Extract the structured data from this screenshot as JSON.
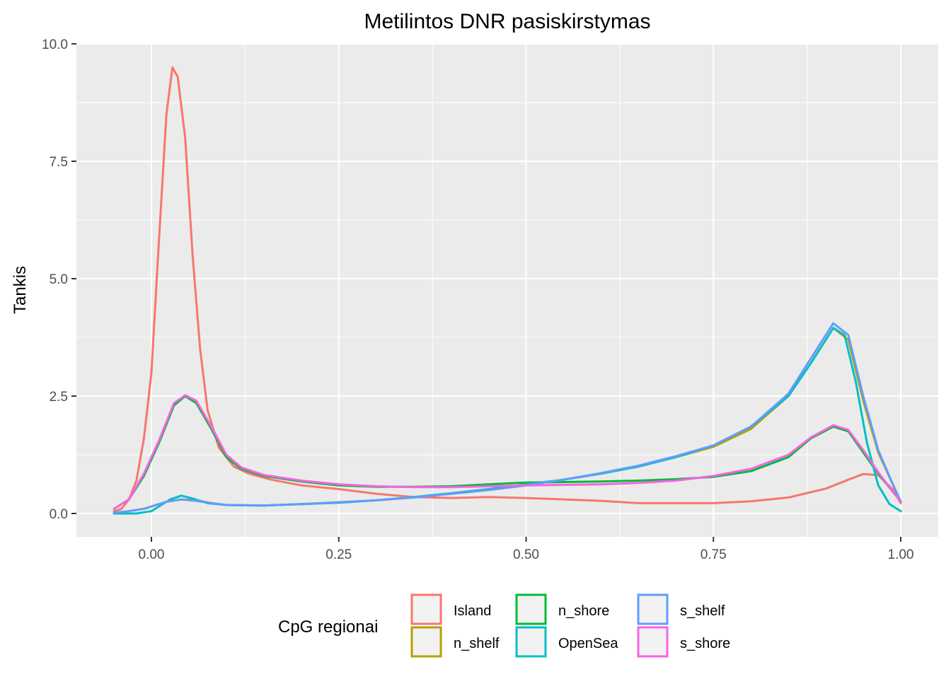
{
  "chart_data": {
    "type": "line",
    "title": "Metilintos DNR pasiskirstymas",
    "xlabel": "",
    "ylabel": "Tankis",
    "xlim": [
      -0.05,
      1.0
    ],
    "ylim": [
      0,
      10
    ],
    "x_ticks": [
      0.0,
      0.25,
      0.5,
      0.75,
      1.0
    ],
    "x_tick_labels": [
      "0.00",
      "0.25",
      "0.50",
      "0.75",
      "1.00"
    ],
    "y_ticks": [
      0.0,
      2.5,
      5.0,
      7.5,
      10.0
    ],
    "y_tick_labels": [
      "0.0",
      "2.5",
      "5.0",
      "7.5",
      "10.0"
    ],
    "grid": true,
    "legend": {
      "title": "CpG regionai",
      "position": "bottom"
    },
    "series": [
      {
        "name": "Island",
        "color": "#F8766D",
        "points": [
          [
            -0.05,
            0.05
          ],
          [
            -0.04,
            0.1
          ],
          [
            -0.03,
            0.3
          ],
          [
            -0.02,
            0.7
          ],
          [
            -0.01,
            1.6
          ],
          [
            0.0,
            3.0
          ],
          [
            0.01,
            5.8
          ],
          [
            0.02,
            8.5
          ],
          [
            0.028,
            9.5
          ],
          [
            0.035,
            9.3
          ],
          [
            0.045,
            8.0
          ],
          [
            0.055,
            5.5
          ],
          [
            0.065,
            3.5
          ],
          [
            0.075,
            2.2
          ],
          [
            0.09,
            1.4
          ],
          [
            0.11,
            1.0
          ],
          [
            0.13,
            0.85
          ],
          [
            0.16,
            0.72
          ],
          [
            0.2,
            0.6
          ],
          [
            0.25,
            0.52
          ],
          [
            0.3,
            0.42
          ],
          [
            0.35,
            0.35
          ],
          [
            0.4,
            0.33
          ],
          [
            0.45,
            0.35
          ],
          [
            0.5,
            0.33
          ],
          [
            0.55,
            0.3
          ],
          [
            0.6,
            0.27
          ],
          [
            0.65,
            0.22
          ],
          [
            0.7,
            0.22
          ],
          [
            0.75,
            0.22
          ],
          [
            0.8,
            0.26
          ],
          [
            0.85,
            0.34
          ],
          [
            0.9,
            0.53
          ],
          [
            0.93,
            0.72
          ],
          [
            0.95,
            0.84
          ],
          [
            0.97,
            0.82
          ],
          [
            0.99,
            0.5
          ],
          [
            1.0,
            0.22
          ]
        ]
      },
      {
        "name": "n_shelf",
        "color": "#B79F00",
        "points": [
          [
            -0.05,
            0.02
          ],
          [
            -0.03,
            0.05
          ],
          [
            -0.01,
            0.1
          ],
          [
            0.0,
            0.15
          ],
          [
            0.02,
            0.25
          ],
          [
            0.04,
            0.3
          ],
          [
            0.06,
            0.28
          ],
          [
            0.08,
            0.22
          ],
          [
            0.1,
            0.18
          ],
          [
            0.15,
            0.17
          ],
          [
            0.2,
            0.2
          ],
          [
            0.25,
            0.24
          ],
          [
            0.3,
            0.28
          ],
          [
            0.35,
            0.34
          ],
          [
            0.4,
            0.42
          ],
          [
            0.45,
            0.5
          ],
          [
            0.5,
            0.6
          ],
          [
            0.55,
            0.72
          ],
          [
            0.6,
            0.85
          ],
          [
            0.65,
            1.0
          ],
          [
            0.7,
            1.2
          ],
          [
            0.75,
            1.42
          ],
          [
            0.8,
            1.8
          ],
          [
            0.85,
            2.5
          ],
          [
            0.88,
            3.2
          ],
          [
            0.91,
            3.95
          ],
          [
            0.93,
            3.7
          ],
          [
            0.95,
            2.4
          ],
          [
            0.97,
            1.3
          ],
          [
            0.99,
            0.6
          ],
          [
            1.0,
            0.25
          ]
        ]
      },
      {
        "name": "n_shore",
        "color": "#00BA38",
        "points": [
          [
            -0.05,
            0.1
          ],
          [
            -0.03,
            0.3
          ],
          [
            -0.01,
            0.8
          ],
          [
            0.01,
            1.5
          ],
          [
            0.03,
            2.3
          ],
          [
            0.045,
            2.5
          ],
          [
            0.06,
            2.35
          ],
          [
            0.08,
            1.8
          ],
          [
            0.1,
            1.2
          ],
          [
            0.12,
            0.95
          ],
          [
            0.15,
            0.8
          ],
          [
            0.2,
            0.68
          ],
          [
            0.25,
            0.6
          ],
          [
            0.3,
            0.57
          ],
          [
            0.35,
            0.57
          ],
          [
            0.4,
            0.58
          ],
          [
            0.45,
            0.62
          ],
          [
            0.5,
            0.66
          ],
          [
            0.55,
            0.67
          ],
          [
            0.6,
            0.68
          ],
          [
            0.65,
            0.7
          ],
          [
            0.7,
            0.73
          ],
          [
            0.75,
            0.78
          ],
          [
            0.8,
            0.9
          ],
          [
            0.85,
            1.2
          ],
          [
            0.88,
            1.6
          ],
          [
            0.91,
            1.85
          ],
          [
            0.93,
            1.75
          ],
          [
            0.95,
            1.3
          ],
          [
            0.97,
            0.85
          ],
          [
            0.99,
            0.45
          ],
          [
            1.0,
            0.25
          ]
        ]
      },
      {
        "name": "OpenSea",
        "color": "#00BFC4",
        "points": [
          [
            -0.05,
            0.0
          ],
          [
            -0.02,
            0.0
          ],
          [
            0.0,
            0.05
          ],
          [
            0.01,
            0.15
          ],
          [
            0.025,
            0.3
          ],
          [
            0.04,
            0.38
          ],
          [
            0.055,
            0.32
          ],
          [
            0.075,
            0.22
          ],
          [
            0.1,
            0.18
          ],
          [
            0.15,
            0.17
          ],
          [
            0.2,
            0.2
          ],
          [
            0.25,
            0.23
          ],
          [
            0.3,
            0.28
          ],
          [
            0.35,
            0.35
          ],
          [
            0.4,
            0.43
          ],
          [
            0.45,
            0.52
          ],
          [
            0.5,
            0.62
          ],
          [
            0.55,
            0.72
          ],
          [
            0.6,
            0.85
          ],
          [
            0.65,
            1.0
          ],
          [
            0.7,
            1.2
          ],
          [
            0.75,
            1.45
          ],
          [
            0.8,
            1.85
          ],
          [
            0.85,
            2.5
          ],
          [
            0.88,
            3.2
          ],
          [
            0.91,
            3.95
          ],
          [
            0.925,
            3.8
          ],
          [
            0.94,
            2.8
          ],
          [
            0.955,
            1.5
          ],
          [
            0.97,
            0.6
          ],
          [
            0.985,
            0.2
          ],
          [
            1.0,
            0.05
          ]
        ]
      },
      {
        "name": "s_shelf",
        "color": "#619CFF",
        "points": [
          [
            -0.05,
            0.02
          ],
          [
            -0.03,
            0.05
          ],
          [
            -0.01,
            0.1
          ],
          [
            0.0,
            0.15
          ],
          [
            0.02,
            0.25
          ],
          [
            0.04,
            0.3
          ],
          [
            0.06,
            0.27
          ],
          [
            0.08,
            0.22
          ],
          [
            0.1,
            0.18
          ],
          [
            0.15,
            0.17
          ],
          [
            0.2,
            0.2
          ],
          [
            0.25,
            0.24
          ],
          [
            0.3,
            0.28
          ],
          [
            0.35,
            0.34
          ],
          [
            0.4,
            0.42
          ],
          [
            0.45,
            0.5
          ],
          [
            0.5,
            0.6
          ],
          [
            0.55,
            0.72
          ],
          [
            0.6,
            0.86
          ],
          [
            0.65,
            1.02
          ],
          [
            0.7,
            1.22
          ],
          [
            0.75,
            1.45
          ],
          [
            0.8,
            1.85
          ],
          [
            0.85,
            2.55
          ],
          [
            0.88,
            3.3
          ],
          [
            0.91,
            4.05
          ],
          [
            0.93,
            3.8
          ],
          [
            0.95,
            2.5
          ],
          [
            0.97,
            1.35
          ],
          [
            0.99,
            0.6
          ],
          [
            1.0,
            0.25
          ]
        ]
      },
      {
        "name": "s_shore",
        "color": "#F564E3",
        "points": [
          [
            -0.05,
            0.1
          ],
          [
            -0.03,
            0.3
          ],
          [
            -0.01,
            0.85
          ],
          [
            0.01,
            1.55
          ],
          [
            0.03,
            2.35
          ],
          [
            0.045,
            2.52
          ],
          [
            0.06,
            2.4
          ],
          [
            0.08,
            1.85
          ],
          [
            0.1,
            1.25
          ],
          [
            0.12,
            0.98
          ],
          [
            0.15,
            0.82
          ],
          [
            0.2,
            0.7
          ],
          [
            0.25,
            0.62
          ],
          [
            0.3,
            0.58
          ],
          [
            0.35,
            0.56
          ],
          [
            0.4,
            0.56
          ],
          [
            0.45,
            0.58
          ],
          [
            0.5,
            0.6
          ],
          [
            0.55,
            0.61
          ],
          [
            0.6,
            0.62
          ],
          [
            0.65,
            0.65
          ],
          [
            0.7,
            0.7
          ],
          [
            0.75,
            0.8
          ],
          [
            0.8,
            0.95
          ],
          [
            0.85,
            1.25
          ],
          [
            0.88,
            1.62
          ],
          [
            0.91,
            1.88
          ],
          [
            0.93,
            1.78
          ],
          [
            0.95,
            1.35
          ],
          [
            0.97,
            0.88
          ],
          [
            0.99,
            0.45
          ],
          [
            1.0,
            0.25
          ]
        ]
      }
    ]
  }
}
